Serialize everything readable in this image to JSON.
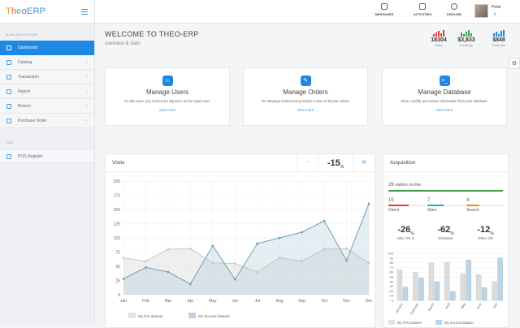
{
  "logo": {
    "t": "T",
    "h": "h",
    "e": "e",
    "o": "o",
    "erp": "ERP"
  },
  "sidebar": {
    "section_main": "MAIN NAVIGATION",
    "items": [
      {
        "label": "Dashboard",
        "active": true
      },
      {
        "label": "Catalog"
      },
      {
        "label": "Transaction"
      },
      {
        "label": "Report"
      },
      {
        "label": "Branch"
      },
      {
        "label": "Purchase Order"
      }
    ],
    "section_pos": "POS",
    "pos_items": [
      {
        "label": "POS Register"
      }
    ]
  },
  "topbar": {
    "messages": "MESSAGES",
    "activities": "ACTIVITIES",
    "language": "ENGLISH",
    "user_name": "Peter",
    "user_caret": "∨"
  },
  "header": {
    "title": "WELCOME TO THEO-ERP",
    "subtitle": "overview & stats"
  },
  "stats": [
    {
      "value": "18304",
      "label": "Sales",
      "color": "#e53935"
    },
    {
      "value": "$3,833",
      "label": "Earnings",
      "color": "#43a047"
    },
    {
      "value": "$848",
      "label": "Referrals",
      "color": "#1e88e5"
    }
  ],
  "cards": [
    {
      "icon": "☺",
      "color": "#1e88e5",
      "title": "Manage Users",
      "desc": "To add users, you need to be signed in as the super user.",
      "link": "view more"
    },
    {
      "icon": "✎",
      "color": "#1e88e5",
      "title": "Manage Orders",
      "desc": "The Manage Orders tool provides a view of all your orders.",
      "link": "view more"
    },
    {
      "icon": ">_",
      "color": "#1e88e5",
      "title": "Manage Database",
      "desc": "Store, modify, and extract information from your database.",
      "link": "view more"
    }
  ],
  "visits": {
    "title": "Visits",
    "dots": "···",
    "pct": "-15",
    "pct_unit": "%",
    "refresh": "⟳"
  },
  "acquisition": {
    "title": "Acquisition",
    "online_n": "26",
    "online_label": "visitors on-line",
    "items": [
      {
        "n": "15",
        "label": "Direct",
        "color": "#e53935",
        "pct": 0.55
      },
      {
        "n": "7",
        "label": "Sites",
        "color": "#26a6c9",
        "pct": 0.45
      },
      {
        "n": "4",
        "label": "Search",
        "color": "#fb8c00",
        "pct": 0.35
      }
    ],
    "big": [
      {
        "value": "-26",
        "unit": "%",
        "label": "Mac OS X"
      },
      {
        "value": "-62",
        "unit": "%",
        "label": "Windows"
      },
      {
        "value": "-12",
        "unit": "%",
        "label": "Other OS"
      }
    ]
  },
  "chart_data": [
    {
      "type": "area",
      "categories": [
        "Jan",
        "Feb",
        "Mar",
        "Apr",
        "May",
        "Jun",
        "Jul",
        "Aug",
        "Sep",
        "Oct",
        "Nov",
        "Dec"
      ],
      "ylim": [
        0,
        200
      ],
      "yticks": [
        0,
        25,
        50,
        75,
        100,
        125,
        150,
        175,
        200
      ],
      "series": [
        {
          "name": "My first dataset",
          "color": "#c8c8c8",
          "values": [
            65,
            59,
            80,
            81,
            56,
            55,
            40,
            65,
            59,
            80,
            81,
            56
          ]
        },
        {
          "name": "My Second dataset",
          "color": "#6e9fb8",
          "values": [
            28,
            48,
            40,
            19,
            86,
            27,
            90,
            100,
            110,
            130,
            60,
            160
          ]
        }
      ],
      "legend": [
        "My first dataset",
        "My Second dataset"
      ]
    },
    {
      "type": "bar",
      "categories": [
        "January",
        "February",
        "March",
        "April",
        "May",
        "June",
        "July"
      ],
      "ylim": [
        0,
        100
      ],
      "yticks": [
        0,
        10,
        20,
        30,
        40,
        50,
        60,
        70,
        80,
        90,
        100
      ],
      "series": [
        {
          "name": "My First dataset",
          "color": "#dcdcdc",
          "values": [
            65,
            59,
            80,
            81,
            56,
            55,
            40
          ]
        },
        {
          "name": "My Second dataset",
          "color": "#bcd4e6",
          "values": [
            28,
            48,
            40,
            19,
            86,
            27,
            90
          ]
        }
      ],
      "legend": [
        "My First dataset",
        "My Second dataset"
      ]
    }
  ]
}
